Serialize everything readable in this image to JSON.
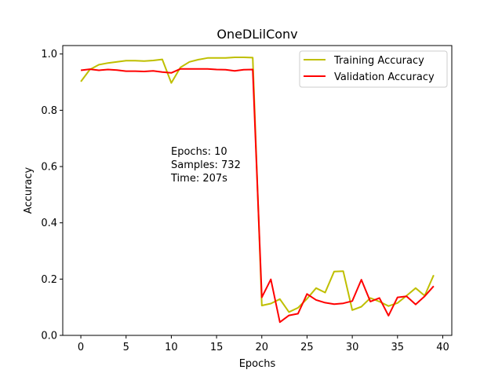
{
  "chart_data": {
    "type": "line",
    "title": "OneDLilConv",
    "xlabel": "Epochs",
    "ylabel": "Accuracy",
    "xlim": [
      -2,
      41
    ],
    "ylim": [
      0.0,
      1.03
    ],
    "xticks": [
      0,
      5,
      10,
      15,
      20,
      25,
      30,
      35,
      40
    ],
    "yticks": [
      0.0,
      0.2,
      0.4,
      0.6,
      0.8,
      1.0
    ],
    "xtick_labels": [
      "0",
      "5",
      "10",
      "15",
      "20",
      "25",
      "30",
      "35",
      "40"
    ],
    "ytick_labels": [
      "0.0",
      "0.2",
      "0.4",
      "0.6",
      "0.8",
      "1.0"
    ],
    "legend_position": "top-right",
    "grid": false,
    "x": [
      0,
      1,
      2,
      3,
      4,
      5,
      6,
      7,
      8,
      9,
      10,
      11,
      12,
      13,
      14,
      15,
      16,
      17,
      18,
      19,
      20,
      21,
      22,
      23,
      24,
      25,
      26,
      27,
      28,
      29,
      30,
      31,
      32,
      33,
      34,
      35,
      36,
      37,
      38,
      39
    ],
    "series": [
      {
        "name": "Training Accuracy",
        "color": "#bfbf00",
        "values": [
          0.902,
          0.945,
          0.962,
          0.968,
          0.972,
          0.976,
          0.976,
          0.975,
          0.977,
          0.981,
          0.897,
          0.952,
          0.972,
          0.98,
          0.986,
          0.986,
          0.986,
          0.988,
          0.988,
          0.987,
          0.106,
          0.113,
          0.129,
          0.083,
          0.098,
          0.13,
          0.168,
          0.152,
          0.227,
          0.228,
          0.09,
          0.102,
          0.133,
          0.12,
          0.104,
          0.115,
          0.141,
          0.168,
          0.141,
          0.214
        ]
      },
      {
        "name": "Validation Accuracy",
        "color": "#ff0000",
        "values": [
          0.942,
          0.946,
          0.942,
          0.945,
          0.943,
          0.939,
          0.939,
          0.938,
          0.94,
          0.936,
          0.933,
          0.947,
          0.947,
          0.947,
          0.947,
          0.945,
          0.944,
          0.94,
          0.944,
          0.945,
          0.135,
          0.199,
          0.047,
          0.071,
          0.077,
          0.147,
          0.126,
          0.116,
          0.111,
          0.114,
          0.122,
          0.198,
          0.12,
          0.133,
          0.07,
          0.135,
          0.139,
          0.11,
          0.139,
          0.175
        ]
      }
    ],
    "annotations": [
      "Epochs: 10",
      "Samples: 732",
      "Time: 207s"
    ]
  }
}
